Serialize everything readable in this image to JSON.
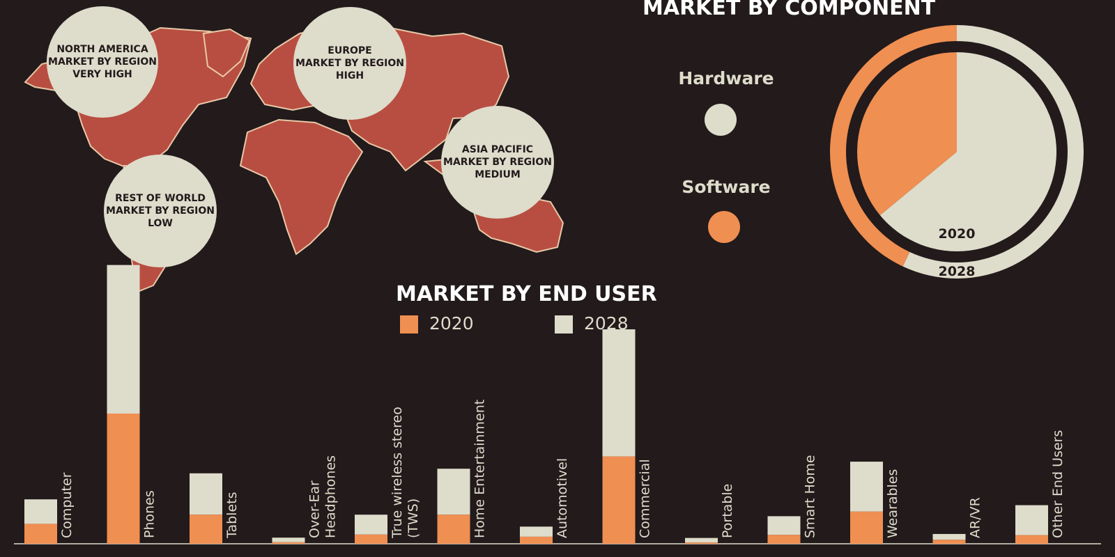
{
  "colors": {
    "background": "#221a1b",
    "map": "#b84e42",
    "cream": "#dedccb",
    "orange": "#ef8f52"
  },
  "regions": [
    {
      "name": "NORTH AMERICA",
      "line2": "MARKET BY REGION",
      "level": "VERY HIGH"
    },
    {
      "name": "EUROPE",
      "line2": "MARKET BY REGION",
      "level": "HIGH"
    },
    {
      "name": "ASIA PACIFIC",
      "line2": "MARKET BY REGION",
      "level": "MEDIUM"
    },
    {
      "name": "REST OF WORLD",
      "line2": "MARKET BY REGION",
      "level": "LOW"
    }
  ],
  "component": {
    "title": "MARKET BY COMPONENT",
    "legend": [
      {
        "label": "Hardware",
        "color": "#dedccb"
      },
      {
        "label": "Software",
        "color": "#ef8f52"
      }
    ],
    "chart_data": {
      "type": "pie",
      "rings": [
        {
          "label": "2020",
          "slices": [
            {
              "name": "Hardware",
              "value": 64
            },
            {
              "name": "Software",
              "value": 36
            }
          ]
        },
        {
          "label": "2028",
          "slices": [
            {
              "name": "Hardware",
              "value": 57
            },
            {
              "name": "Software",
              "value": 43
            }
          ]
        }
      ]
    }
  },
  "end_user": {
    "title": "MARKET BY END USER",
    "legend": [
      {
        "label": "2020",
        "color": "#ef8f52"
      },
      {
        "label": "2028",
        "color": "#dedccb"
      }
    ],
    "chart_data": {
      "type": "bar",
      "stacked": true,
      "categories": [
        "Computer",
        "Phones",
        "Tablets",
        "Over-Ear Headphones",
        "True wireless stereo (TWS)",
        "Home Entertainment",
        "Automotivel",
        "Commercial",
        "Portable",
        "Smart Home",
        "Wearables",
        "AR/VR",
        "Other End Users"
      ],
      "category_lines": [
        [
          "Computer"
        ],
        [
          "Phones"
        ],
        [
          "Tablets"
        ],
        [
          "Over-Ear",
          "Headphones"
        ],
        [
          "True wireless stereo",
          "(TWS)"
        ],
        [
          "Home Entertainment"
        ],
        [
          "Automotivel"
        ],
        [
          "Commercial"
        ],
        [
          "Portable"
        ],
        [
          "Smart Home"
        ],
        [
          "Wearables"
        ],
        [
          "AR/VR"
        ],
        [
          "Other End Users"
        ]
      ],
      "series": [
        {
          "name": "2020",
          "color": "#ef8f52",
          "values": [
            6.5,
            42.5,
            9.5,
            0.5,
            3,
            9.5,
            2.3,
            28.5,
            0.4,
            2.9,
            10.5,
            1.3,
            2.8
          ]
        },
        {
          "name": "2028",
          "color": "#dedccb",
          "values": [
            8,
            48.5,
            13.5,
            1.5,
            6.5,
            15,
            3.3,
            41.5,
            1.5,
            6.1,
            16.3,
            1.9,
            9.8
          ]
        }
      ],
      "ylim": [
        0,
        100
      ]
    }
  }
}
